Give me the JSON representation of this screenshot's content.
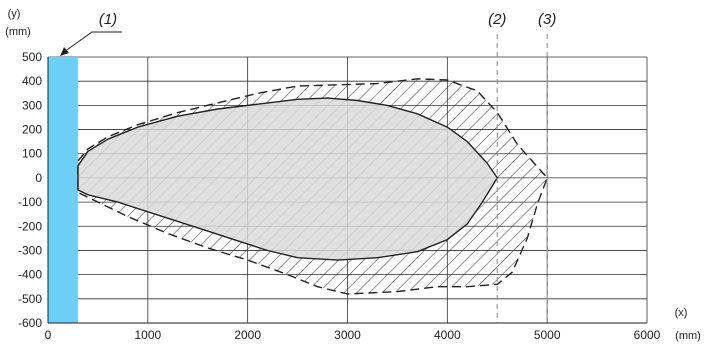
{
  "chart_data": {
    "type": "area",
    "title": "",
    "xlabel": "(x)",
    "xunit": "(mm)",
    "ylabel": "(y)",
    "yunit": "(mm)",
    "xlim": [
      0,
      6000
    ],
    "ylim": [
      -600,
      500
    ],
    "xticks": [
      0,
      1000,
      2000,
      3000,
      4000,
      5000,
      6000
    ],
    "yticks": [
      500,
      400,
      300,
      200,
      100,
      0,
      -100,
      -200,
      -300,
      -400,
      -500,
      -600
    ],
    "grid": true,
    "sensor_band": {
      "x": [
        0,
        300
      ],
      "color": "#6ecff6",
      "label": "(1)"
    },
    "series": [
      {
        "label": "(2)",
        "line_style": "solid",
        "fill": "#d9d9d9",
        "marker_x": 4500,
        "points": [
          [
            300,
            50
          ],
          [
            400,
            110
          ],
          [
            600,
            160
          ],
          [
            900,
            210
          ],
          [
            1300,
            255
          ],
          [
            1700,
            285
          ],
          [
            2100,
            305
          ],
          [
            2500,
            325
          ],
          [
            2800,
            330
          ],
          [
            3100,
            320
          ],
          [
            3400,
            300
          ],
          [
            3700,
            265
          ],
          [
            4000,
            210
          ],
          [
            4200,
            150
          ],
          [
            4400,
            60
          ],
          [
            4500,
            0
          ],
          [
            4350,
            -100
          ],
          [
            4200,
            -190
          ],
          [
            4000,
            -255
          ],
          [
            3700,
            -305
          ],
          [
            3300,
            -330
          ],
          [
            2900,
            -340
          ],
          [
            2500,
            -330
          ],
          [
            2200,
            -300
          ],
          [
            1900,
            -260
          ],
          [
            1600,
            -220
          ],
          [
            1300,
            -180
          ],
          [
            1000,
            -140
          ],
          [
            700,
            -100
          ],
          [
            400,
            -70
          ],
          [
            300,
            -50
          ]
        ]
      },
      {
        "label": "(3)",
        "line_style": "dashed",
        "fill": "hatch",
        "marker_x": 5000,
        "points": [
          [
            300,
            70
          ],
          [
            400,
            120
          ],
          [
            600,
            170
          ],
          [
            900,
            220
          ],
          [
            1300,
            270
          ],
          [
            1700,
            310
          ],
          [
            2100,
            350
          ],
          [
            2500,
            380
          ],
          [
            2900,
            385
          ],
          [
            3300,
            390
          ],
          [
            3700,
            410
          ],
          [
            4000,
            405
          ],
          [
            4300,
            360
          ],
          [
            4500,
            270
          ],
          [
            4700,
            140
          ],
          [
            4850,
            70
          ],
          [
            5000,
            0
          ],
          [
            4900,
            -110
          ],
          [
            4800,
            -250
          ],
          [
            4650,
            -390
          ],
          [
            4500,
            -440
          ],
          [
            4200,
            -450
          ],
          [
            3900,
            -450
          ],
          [
            3500,
            -470
          ],
          [
            3000,
            -480
          ],
          [
            2700,
            -450
          ],
          [
            2400,
            -400
          ],
          [
            2000,
            -340
          ],
          [
            1600,
            -290
          ],
          [
            1200,
            -230
          ],
          [
            800,
            -160
          ],
          [
            400,
            -80
          ],
          [
            300,
            -60
          ]
        ]
      }
    ]
  }
}
